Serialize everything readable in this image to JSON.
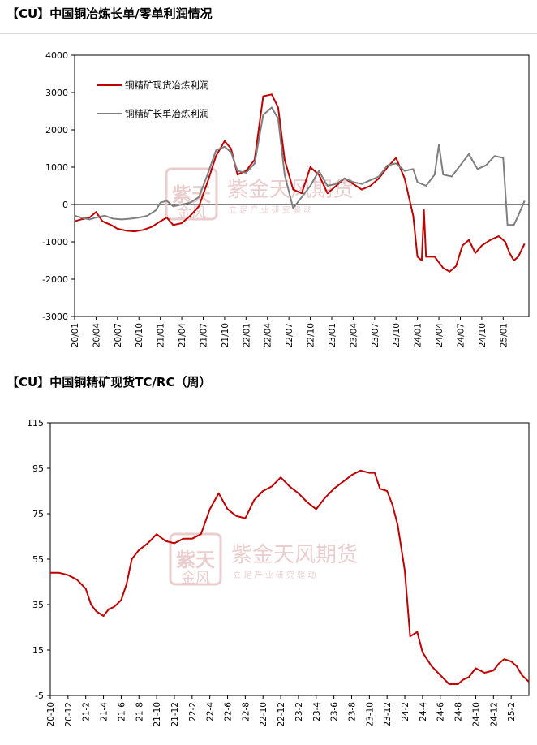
{
  "header": {
    "title1": "【CU】中国铜冶炼长单/零单利润情况",
    "title2": "【CU】中国铜精矿现货TC/RC（周）"
  },
  "watermark": {
    "name": "紫金天风期货",
    "slogan": "立 足 产 业   研 究 驱 动",
    "seal": "紫天金风"
  },
  "colors": {
    "red": "#c00000",
    "gray": "#7f7f7f",
    "watermark": "#e8c9c9"
  },
  "chart_data": [
    {
      "type": "line",
      "ylim": [
        -3000,
        4000
      ],
      "yticks": [
        -3000,
        -2000,
        -1000,
        0,
        1000,
        2000,
        3000,
        4000
      ],
      "categories": [
        "20/01",
        "20/04",
        "20/07",
        "20/10",
        "21/01",
        "21/04",
        "21/07",
        "21/10",
        "22/01",
        "22/04",
        "22/07",
        "22/10",
        "23/01",
        "23/04",
        "23/07",
        "23/10",
        "24/01",
        "24/04",
        "24/07",
        "24/10",
        "25/01"
      ],
      "legend": "top-left",
      "series": [
        {
          "name": "铜精矿现货冶炼利润",
          "color": "#c00000",
          "points": [
            [
              0,
              -450
            ],
            [
              0.3,
              -400
            ],
            [
              0.7,
              -350
            ],
            [
              1.0,
              -200
            ],
            [
              1.3,
              -450
            ],
            [
              1.7,
              -550
            ],
            [
              2.0,
              -650
            ],
            [
              2.4,
              -700
            ],
            [
              2.8,
              -720
            ],
            [
              3.2,
              -680
            ],
            [
              3.6,
              -600
            ],
            [
              4.0,
              -450
            ],
            [
              4.3,
              -350
            ],
            [
              4.6,
              -550
            ],
            [
              5.0,
              -500
            ],
            [
              5.4,
              -300
            ],
            [
              5.8,
              -50
            ],
            [
              6.2,
              600
            ],
            [
              6.6,
              1300
            ],
            [
              7.0,
              1700
            ],
            [
              7.3,
              1500
            ],
            [
              7.6,
              800
            ],
            [
              8.0,
              900
            ],
            [
              8.4,
              1200
            ],
            [
              8.8,
              2900
            ],
            [
              9.2,
              2950
            ],
            [
              9.5,
              2600
            ],
            [
              9.8,
              1200
            ],
            [
              10.2,
              400
            ],
            [
              10.6,
              300
            ],
            [
              11.0,
              1000
            ],
            [
              11.4,
              800
            ],
            [
              11.8,
              300
            ],
            [
              12.2,
              500
            ],
            [
              12.6,
              700
            ],
            [
              13.0,
              550
            ],
            [
              13.4,
              400
            ],
            [
              13.8,
              500
            ],
            [
              14.2,
              700
            ],
            [
              14.6,
              1000
            ],
            [
              15.0,
              1250
            ],
            [
              15.4,
              700
            ],
            [
              15.8,
              -300
            ],
            [
              16.0,
              -1400
            ],
            [
              16.2,
              -1500
            ],
            [
              16.3,
              -150
            ],
            [
              16.4,
              -1400
            ],
            [
              16.8,
              -1400
            ],
            [
              17.2,
              -1700
            ],
            [
              17.5,
              -1800
            ],
            [
              17.8,
              -1650
            ],
            [
              18.1,
              -1100
            ],
            [
              18.4,
              -950
            ],
            [
              18.7,
              -1300
            ],
            [
              19.0,
              -1100
            ],
            [
              19.4,
              -950
            ],
            [
              19.8,
              -850
            ],
            [
              20.1,
              -1000
            ],
            [
              20.3,
              -1300
            ],
            [
              20.5,
              -1500
            ],
            [
              20.7,
              -1400
            ],
            [
              21.0,
              -1050
            ]
          ]
        },
        {
          "name": "铜精矿长单冶炼利润",
          "color": "#7f7f7f",
          "points": [
            [
              0,
              -300
            ],
            [
              0.3,
              -350
            ],
            [
              0.7,
              -400
            ],
            [
              1.0,
              -350
            ],
            [
              1.4,
              -300
            ],
            [
              1.8,
              -380
            ],
            [
              2.2,
              -400
            ],
            [
              2.6,
              -380
            ],
            [
              3.0,
              -350
            ],
            [
              3.4,
              -300
            ],
            [
              3.8,
              -150
            ],
            [
              4.0,
              50
            ],
            [
              4.3,
              100
            ],
            [
              4.6,
              -50
            ],
            [
              5.0,
              0
            ],
            [
              5.4,
              50
            ],
            [
              5.8,
              200
            ],
            [
              6.2,
              800
            ],
            [
              6.6,
              1450
            ],
            [
              7.0,
              1550
            ],
            [
              7.3,
              1400
            ],
            [
              7.6,
              900
            ],
            [
              8.0,
              850
            ],
            [
              8.4,
              1100
            ],
            [
              8.8,
              2400
            ],
            [
              9.2,
              2600
            ],
            [
              9.5,
              2300
            ],
            [
              9.8,
              800
            ],
            [
              10.2,
              -100
            ],
            [
              10.6,
              200
            ],
            [
              11.0,
              500
            ],
            [
              11.4,
              900
            ],
            [
              11.8,
              500
            ],
            [
              12.2,
              550
            ],
            [
              12.6,
              700
            ],
            [
              13.0,
              600
            ],
            [
              13.4,
              550
            ],
            [
              13.8,
              650
            ],
            [
              14.2,
              750
            ],
            [
              14.6,
              1050
            ],
            [
              15.0,
              1100
            ],
            [
              15.4,
              900
            ],
            [
              15.8,
              950
            ],
            [
              16.0,
              600
            ],
            [
              16.4,
              500
            ],
            [
              16.8,
              800
            ],
            [
              17.0,
              1600
            ],
            [
              17.2,
              800
            ],
            [
              17.6,
              750
            ],
            [
              18.0,
              1050
            ],
            [
              18.4,
              1350
            ],
            [
              18.8,
              950
            ],
            [
              19.2,
              1050
            ],
            [
              19.6,
              1300
            ],
            [
              20.0,
              1250
            ],
            [
              20.2,
              -550
            ],
            [
              20.5,
              -550
            ],
            [
              20.7,
              -300
            ],
            [
              21.0,
              100
            ]
          ]
        }
      ]
    },
    {
      "type": "line",
      "ylim": [
        -5,
        115
      ],
      "yticks": [
        -5,
        15,
        35,
        55,
        75,
        95,
        115
      ],
      "categories": [
        "20-10",
        "20-12",
        "21-2",
        "21-4",
        "21-6",
        "21-8",
        "21-10",
        "21-12",
        "22-2",
        "22-4",
        "22-6",
        "22-8",
        "22-10",
        "22-12",
        "23-2",
        "23-4",
        "23-6",
        "23-8",
        "23-10",
        "23-12",
        "24-2",
        "24-4",
        "24-6",
        "24-8",
        "24-10",
        "24-12",
        "25-2"
      ],
      "series": [
        {
          "name": "",
          "color": "#c00000",
          "points": [
            [
              0,
              49
            ],
            [
              0.5,
              49
            ],
            [
              1,
              48
            ],
            [
              1.5,
              46
            ],
            [
              2,
              42
            ],
            [
              2.3,
              35
            ],
            [
              2.6,
              32
            ],
            [
              3,
              30
            ],
            [
              3.3,
              33
            ],
            [
              3.6,
              34
            ],
            [
              4,
              37
            ],
            [
              4.3,
              44
            ],
            [
              4.6,
              55
            ],
            [
              5,
              59
            ],
            [
              5.5,
              62
            ],
            [
              6,
              66
            ],
            [
              6.5,
              63
            ],
            [
              7,
              62
            ],
            [
              7.5,
              64
            ],
            [
              8,
              64
            ],
            [
              8.5,
              66
            ],
            [
              9,
              77
            ],
            [
              9.5,
              84
            ],
            [
              10,
              77
            ],
            [
              10.5,
              74
            ],
            [
              11,
              73
            ],
            [
              11.5,
              81
            ],
            [
              12,
              85
            ],
            [
              12.5,
              87
            ],
            [
              13,
              91
            ],
            [
              13.5,
              87
            ],
            [
              14,
              84
            ],
            [
              14.5,
              80
            ],
            [
              15,
              77
            ],
            [
              15.5,
              82
            ],
            [
              16,
              86
            ],
            [
              16.5,
              89
            ],
            [
              17,
              92
            ],
            [
              17.5,
              94
            ],
            [
              18,
              93
            ],
            [
              18.3,
              93
            ],
            [
              18.6,
              86
            ],
            [
              19,
              85
            ],
            [
              19.3,
              79
            ],
            [
              19.6,
              70
            ],
            [
              20,
              50
            ],
            [
              20.3,
              21
            ],
            [
              20.7,
              23
            ],
            [
              21,
              14
            ],
            [
              21.5,
              8
            ],
            [
              22,
              4
            ],
            [
              22.5,
              0
            ],
            [
              23,
              0
            ],
            [
              23.3,
              2
            ],
            [
              23.6,
              3
            ],
            [
              24,
              7
            ],
            [
              24.5,
              5
            ],
            [
              25,
              6
            ],
            [
              25.3,
              9
            ],
            [
              25.6,
              11
            ],
            [
              26,
              10
            ],
            [
              26.3,
              8
            ],
            [
              26.6,
              4
            ],
            [
              27,
              1
            ]
          ]
        }
      ]
    }
  ]
}
